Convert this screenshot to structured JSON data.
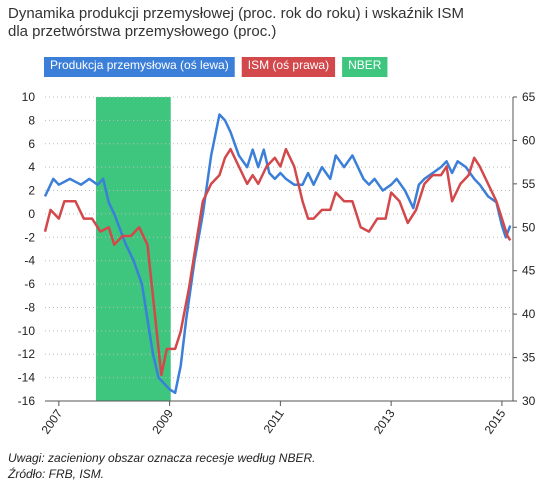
{
  "chart_data": {
    "type": "line",
    "title_lines": [
      "Dynamika produkcji przemysłowej   (proc. rok do roku) i wskaźnik ISM",
      "dla przetwórstwa przemysłowego (proc.)"
    ],
    "notes": [
      "Uwagi: zacieniony obszar oznacza recesje według NBER.",
      "Źródło: FRB, ISM."
    ],
    "xlim": [
      2006.75,
      2015.2
    ],
    "xticks": [
      2007,
      2009,
      2011,
      2013,
      2015
    ],
    "ylim": [
      -16,
      10
    ],
    "yticks": [
      -16,
      -14,
      -12,
      -10,
      -8,
      -6,
      -4,
      -2,
      0,
      2,
      4,
      6,
      8,
      10
    ],
    "y2lim": [
      30,
      65
    ],
    "y2ticks": [
      30,
      35,
      40,
      45,
      50,
      55,
      60,
      65
    ],
    "grid": true,
    "shaded_regions": [
      {
        "name": "NBER",
        "color": "#3ec67f",
        "x": [
          2007.67,
          2009.02
        ]
      }
    ],
    "series": [
      {
        "name": "Produkcja przemysłowa (oś lewa)",
        "color": "#3b7fd8",
        "axis": "y",
        "x": [
          2006.75,
          2006.9,
          2007.0,
          2007.2,
          2007.4,
          2007.55,
          2007.7,
          2007.8,
          2007.9,
          2008.0,
          2008.2,
          2008.35,
          2008.5,
          2008.6,
          2008.7,
          2008.8,
          2009.0,
          2009.1,
          2009.2,
          2009.3,
          2009.45,
          2009.6,
          2009.75,
          2009.9,
          2010.0,
          2010.1,
          2010.25,
          2010.4,
          2010.5,
          2010.6,
          2010.7,
          2010.8,
          2010.9,
          2011.0,
          2011.1,
          2011.25,
          2011.4,
          2011.5,
          2011.6,
          2011.75,
          2011.9,
          2012.0,
          2012.15,
          2012.3,
          2012.5,
          2012.6,
          2012.7,
          2012.85,
          2013.0,
          2013.1,
          2013.25,
          2013.4,
          2013.5,
          2013.6,
          2013.75,
          2013.9,
          2014.0,
          2014.1,
          2014.2,
          2014.35,
          2014.5,
          2014.6,
          2014.75,
          2014.9,
          2015.0,
          2015.07,
          2015.15
        ],
        "values": [
          1.5,
          3,
          2.5,
          3,
          2.5,
          3,
          2.5,
          3,
          1,
          0,
          -2.5,
          -4,
          -6,
          -9,
          -12,
          -14,
          -15,
          -15.3,
          -13,
          -9,
          -4,
          0,
          5,
          8.5,
          8,
          7,
          5,
          4,
          5.5,
          4,
          5.5,
          3.5,
          3,
          3.5,
          3,
          2.5,
          2.5,
          3.5,
          2.5,
          4,
          3,
          5,
          4,
          5,
          3,
          2.5,
          3,
          2,
          2.5,
          3,
          2,
          0.5,
          2.5,
          3,
          3.5,
          4,
          4.5,
          3.5,
          4.5,
          4,
          3,
          2.5,
          1.5,
          1,
          -1,
          -2,
          -1
        ]
      },
      {
        "name": "ISM (oś prawa)",
        "color": "#d2484b",
        "axis": "y2",
        "x": [
          2006.75,
          2006.85,
          2007.0,
          2007.1,
          2007.3,
          2007.45,
          2007.6,
          2007.75,
          2007.9,
          2008.0,
          2008.15,
          2008.3,
          2008.45,
          2008.6,
          2008.7,
          2008.8,
          2008.85,
          2008.95,
          2009.1,
          2009.2,
          2009.35,
          2009.5,
          2009.6,
          2009.75,
          2009.9,
          2010.0,
          2010.1,
          2010.25,
          2010.4,
          2010.5,
          2010.6,
          2010.75,
          2010.9,
          2011.0,
          2011.1,
          2011.25,
          2011.4,
          2011.5,
          2011.6,
          2011.75,
          2011.9,
          2012.0,
          2012.15,
          2012.3,
          2012.45,
          2012.6,
          2012.75,
          2012.9,
          2013.0,
          2013.15,
          2013.3,
          2013.45,
          2013.6,
          2013.75,
          2013.9,
          2014.0,
          2014.1,
          2014.25,
          2014.4,
          2014.5,
          2014.6,
          2014.75,
          2014.9,
          2015.0,
          2015.1,
          2015.15
        ],
        "values": [
          49.5,
          52,
          51,
          53,
          53,
          51,
          51,
          49.5,
          50,
          48,
          49,
          49,
          50,
          48,
          42,
          36,
          33,
          36,
          36,
          38,
          43,
          49,
          53,
          55,
          56,
          58,
          59,
          57,
          55,
          56,
          55,
          57,
          58,
          57,
          59,
          57,
          53,
          51,
          51,
          52,
          52,
          54,
          53,
          53,
          50,
          49.5,
          51,
          51,
          54,
          53,
          50.5,
          52,
          55,
          56,
          56,
          57,
          53,
          55,
          56,
          58,
          57,
          55,
          53,
          51,
          49,
          48.5
        ]
      }
    ]
  }
}
